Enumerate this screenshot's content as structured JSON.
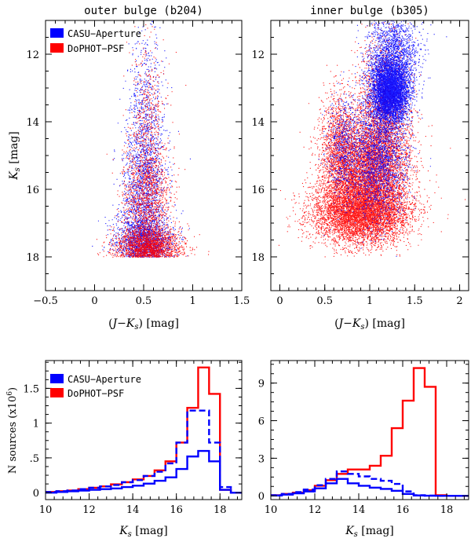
{
  "figure": {
    "panels": [
      {
        "id": "a",
        "title": "outer bulge (b204)",
        "ylabel": "K_s [mag]",
        "xlabel": "(J−K_s) [mag]",
        "legend": [
          {
            "label": "CASU−Aperture",
            "color": "#0000ff"
          },
          {
            "label": "DoPHOT−PSF",
            "color": "#ff0000"
          }
        ]
      },
      {
        "id": "b",
        "title": "inner bulge (b305)",
        "ylabel": "",
        "xlabel": "(J−K_s) [mag]",
        "legend": []
      },
      {
        "id": "c",
        "title": "",
        "ylabel": "N sources (x10^6)",
        "xlabel": "K_s [mag]",
        "legend": [
          {
            "label": "CASU−Aperture",
            "color": "#0000ff"
          },
          {
            "label": "DoPHOT−PSF",
            "color": "#ff0000"
          }
        ]
      },
      {
        "id": "d",
        "title": "",
        "ylabel": "",
        "xlabel": "K_s [mag]",
        "legend": []
      }
    ]
  },
  "chart_data": [
    {
      "type": "scatter",
      "title": "outer bulge (b204)",
      "xlabel": "(J−K_s) [mag]",
      "ylabel": "K_s [mag]",
      "xlim": [
        -0.5,
        1.5
      ],
      "ylim": [
        19,
        11
      ],
      "xticks": [
        -0.5,
        0,
        0.5,
        1,
        1.5
      ],
      "yticks": [
        12,
        14,
        16,
        18
      ],
      "legend_position": "top-left",
      "series": [
        {
          "name": "CASU−Aperture",
          "color": "#0000ff",
          "blobs": [
            {
              "cx": 0.5,
              "cy": 17.6,
              "sx": 0.14,
              "sy": 0.45,
              "n": 2200
            },
            {
              "cx": 0.5,
              "cy": 16.0,
              "sx": 0.11,
              "sy": 1.0,
              "n": 1300
            },
            {
              "cx": 0.52,
              "cy": 13.8,
              "sx": 0.09,
              "sy": 1.2,
              "n": 650
            }
          ]
        },
        {
          "name": "DoPHOT−PSF",
          "color": "#ff0000",
          "blobs": [
            {
              "cx": 0.55,
              "cy": 17.8,
              "sx": 0.17,
              "sy": 0.35,
              "n": 2600
            },
            {
              "cx": 0.52,
              "cy": 16.3,
              "sx": 0.12,
              "sy": 0.9,
              "n": 1300
            },
            {
              "cx": 0.54,
              "cy": 14.0,
              "sx": 0.09,
              "sy": 1.2,
              "n": 500
            }
          ]
        }
      ]
    },
    {
      "type": "scatter",
      "title": "inner bulge (b305)",
      "xlabel": "(J−K_s) [mag]",
      "ylabel": "",
      "xlim": [
        -0.1,
        2.1
      ],
      "ylim": [
        19,
        11
      ],
      "xticks": [
        0,
        0.5,
        1,
        1.5,
        2
      ],
      "yticks": [
        12,
        14,
        16,
        18
      ],
      "series": [
        {
          "name": "DoPHOT−PSF",
          "color": "#ff0000",
          "blobs": [
            {
              "cx": 0.9,
              "cy": 16.7,
              "sx": 0.27,
              "sy": 0.45,
              "n": 16000
            },
            {
              "cx": 0.95,
              "cy": 15.5,
              "sx": 0.22,
              "sy": 0.8,
              "n": 5000
            },
            {
              "cx": 1.15,
              "cy": 14.0,
              "sx": 0.15,
              "sy": 1.2,
              "n": 2500
            },
            {
              "cx": 0.65,
              "cy": 14.8,
              "sx": 0.1,
              "sy": 0.9,
              "n": 1200
            }
          ]
        },
        {
          "name": "CASU−Aperture",
          "color": "#0000ff",
          "blobs": [
            {
              "cx": 1.22,
              "cy": 13.1,
              "sx": 0.1,
              "sy": 0.45,
              "n": 4500
            },
            {
              "cx": 1.25,
              "cy": 12.2,
              "sx": 0.14,
              "sy": 0.8,
              "n": 2200
            },
            {
              "cx": 1.1,
              "cy": 15.0,
              "sx": 0.16,
              "sy": 0.9,
              "n": 2000
            },
            {
              "cx": 0.7,
              "cy": 14.8,
              "sx": 0.09,
              "sy": 0.8,
              "n": 600
            }
          ]
        }
      ]
    },
    {
      "type": "line",
      "step": true,
      "xlabel": "K_s [mag]",
      "ylabel": "N sources (x10^6)",
      "xlim": [
        10,
        19
      ],
      "ylim": [
        -0.1,
        1.9
      ],
      "xticks": [
        10,
        12,
        14,
        16,
        18
      ],
      "yticks": [
        0,
        0.5,
        1,
        1.5
      ],
      "ytick_labels": [
        "0",
        ".5",
        "1",
        "1.5"
      ],
      "legend_position": "top-left",
      "bin_edges": [
        10,
        10.5,
        11,
        11.5,
        12,
        12.5,
        13,
        13.5,
        14,
        14.5,
        15,
        15.5,
        16,
        16.5,
        17,
        17.5,
        18,
        18.5,
        19
      ],
      "series": [
        {
          "name": "DoPHOT−PSF",
          "color": "#ff0000",
          "style": "solid",
          "values": [
            0.01,
            0.02,
            0.03,
            0.05,
            0.07,
            0.09,
            0.12,
            0.15,
            0.19,
            0.24,
            0.32,
            0.45,
            0.72,
            1.22,
            1.8,
            1.42,
            0.04,
            0.0
          ]
        },
        {
          "name": "CASU−Aperture",
          "color": "#0000ff",
          "style": "dashed",
          "values": [
            0.01,
            0.02,
            0.03,
            0.05,
            0.07,
            0.09,
            0.11,
            0.15,
            0.18,
            0.24,
            0.3,
            0.42,
            0.72,
            1.18,
            1.18,
            0.72,
            0.08,
            0.0
          ]
        },
        {
          "name": "",
          "color": "#0000ff",
          "style": "solid",
          "values": [
            0.0,
            0.01,
            0.02,
            0.03,
            0.04,
            0.05,
            0.06,
            0.08,
            0.1,
            0.13,
            0.17,
            0.22,
            0.34,
            0.52,
            0.6,
            0.45,
            0.04,
            0.0
          ]
        }
      ]
    },
    {
      "type": "line",
      "step": true,
      "xlabel": "K_s [mag]",
      "ylabel": "",
      "xlim": [
        10,
        19
      ],
      "ylim": [
        -0.3,
        10.8
      ],
      "xticks": [
        10,
        12,
        14,
        16,
        18
      ],
      "yticks": [
        0,
        3,
        6,
        9
      ],
      "bin_edges": [
        10,
        10.5,
        11,
        11.5,
        12,
        12.5,
        13,
        13.5,
        14,
        14.5,
        15,
        15.5,
        16,
        16.5,
        17,
        17.5,
        18,
        18.5,
        19
      ],
      "series": [
        {
          "name": "",
          "color": "#ff0000",
          "style": "solid",
          "values": [
            0.05,
            0.15,
            0.25,
            0.45,
            0.8,
            1.25,
            1.75,
            2.1,
            2.1,
            2.4,
            3.2,
            5.4,
            7.6,
            10.2,
            8.7,
            0.05,
            0.0,
            0.0
          ]
        },
        {
          "name": "",
          "color": "#0000ff",
          "style": "dashed",
          "values": [
            0.05,
            0.15,
            0.3,
            0.5,
            0.85,
            1.35,
            1.95,
            1.75,
            1.55,
            1.35,
            1.2,
            0.95,
            0.35,
            0.05,
            0.02,
            0.0,
            0.0,
            0.0
          ]
        },
        {
          "name": "",
          "color": "#0000ff",
          "style": "solid",
          "values": [
            0.03,
            0.1,
            0.2,
            0.35,
            0.6,
            1.0,
            1.35,
            1.0,
            0.8,
            0.65,
            0.55,
            0.4,
            0.15,
            0.03,
            0.01,
            0.0,
            0.0,
            0.0
          ]
        }
      ]
    }
  ]
}
